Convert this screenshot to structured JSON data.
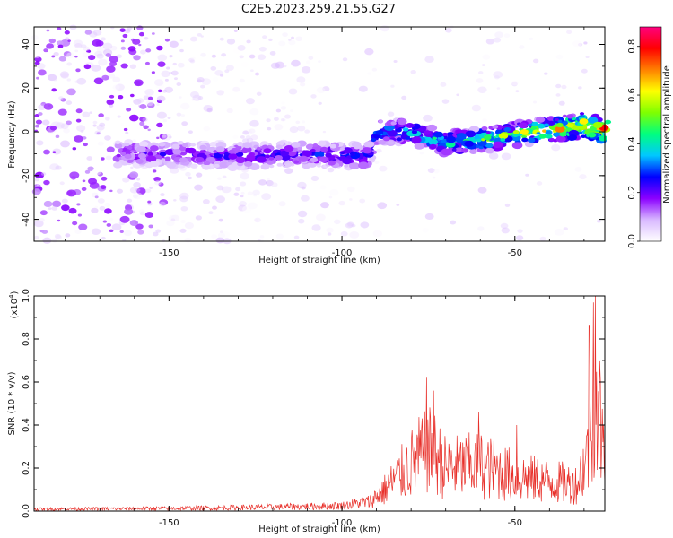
{
  "title": "C2E5.2023.259.21.55.G27",
  "chart_data": [
    {
      "type": "heatmap",
      "xlabel": "Height of straight line (km)",
      "ylabel": "Frequency (Hz)",
      "xlim": [
        -189,
        -24
      ],
      "ylim": [
        -50,
        48
      ],
      "x_ticks": [
        {
          "value": -150,
          "label": "-150"
        },
        {
          "value": -100,
          "label": "-100"
        },
        {
          "value": -50,
          "label": "-50"
        }
      ],
      "y_ticks": [
        {
          "value": -40,
          "label": "-40"
        },
        {
          "value": -20,
          "label": "-20"
        },
        {
          "value": 0,
          "label": "0"
        },
        {
          "value": 20,
          "label": "20"
        },
        {
          "value": 40,
          "label": "40"
        }
      ],
      "colorbar": {
        "label": "Normalized spectral amplitude",
        "range": [
          0.0,
          0.88
        ],
        "ticks": [
          {
            "value": 0.0,
            "label": "0.0"
          },
          {
            "value": 0.2,
            "label": "0.2"
          },
          {
            "value": 0.4,
            "label": "0.4"
          },
          {
            "value": 0.6,
            "label": "0.6"
          },
          {
            "value": 0.8,
            "label": "0.8"
          }
        ],
        "colors": [
          "#ffffff",
          "#d8b8ff",
          "#8b00ff",
          "#0000ff",
          "#00c8ff",
          "#00ff7f",
          "#7fff00",
          "#ffff00",
          "#ff8000",
          "#ff0000",
          "#ff0080"
        ]
      },
      "signal_ridge": [
        {
          "x": -164,
          "y": -10,
          "amp": 0.2
        },
        {
          "x": -150,
          "y": -10,
          "amp": 0.22
        },
        {
          "x": -140,
          "y": -11,
          "amp": 0.22
        },
        {
          "x": -125,
          "y": -11,
          "amp": 0.24
        },
        {
          "x": -110,
          "y": -10,
          "amp": 0.26
        },
        {
          "x": -100,
          "y": -11,
          "amp": 0.28
        },
        {
          "x": -92,
          "y": -11,
          "amp": 0.3
        },
        {
          "x": -90,
          "y": 0,
          "amp": 0.38
        },
        {
          "x": -80,
          "y": 0,
          "amp": 0.42
        },
        {
          "x": -70,
          "y": -5,
          "amp": 0.45
        },
        {
          "x": -60,
          "y": -4,
          "amp": 0.5
        },
        {
          "x": -50,
          "y": -1,
          "amp": 0.55
        },
        {
          "x": -40,
          "y": 1,
          "amp": 0.65
        },
        {
          "x": -30,
          "y": 3,
          "amp": 0.75
        },
        {
          "x": -25,
          "y": 1,
          "amp": 0.8
        }
      ]
    },
    {
      "type": "line",
      "xlabel": "Height of straight line (km)",
      "ylabel": "SNR (10 * v/v)",
      "scale_label": "(x10",
      "scale_exp": "4",
      "scale_close": ")",
      "xlim": [
        -189,
        -24
      ],
      "ylim": [
        0.0,
        1.0
      ],
      "x_ticks": [
        {
          "value": -150,
          "label": "-150"
        },
        {
          "value": -100,
          "label": "-100"
        },
        {
          "value": -50,
          "label": "-50"
        }
      ],
      "y_ticks": [
        {
          "value": 0.0,
          "label": "0.0"
        },
        {
          "value": 0.2,
          "label": "0.2"
        },
        {
          "value": 0.4,
          "label": "0.4"
        },
        {
          "value": 0.6,
          "label": "0.6"
        },
        {
          "value": 0.8,
          "label": "0.8"
        },
        {
          "value": 1.0,
          "label": "1.0"
        }
      ],
      "color": "#e8302a",
      "envelope": [
        {
          "x": -189,
          "y": 0.015
        },
        {
          "x": -150,
          "y": 0.02
        },
        {
          "x": -120,
          "y": 0.03
        },
        {
          "x": -100,
          "y": 0.04
        },
        {
          "x": -92,
          "y": 0.07
        },
        {
          "x": -88,
          "y": 0.15
        },
        {
          "x": -84,
          "y": 0.25
        },
        {
          "x": -78,
          "y": 0.4
        },
        {
          "x": -74,
          "y": 0.45
        },
        {
          "x": -70,
          "y": 0.32
        },
        {
          "x": -60,
          "y": 0.34
        },
        {
          "x": -50,
          "y": 0.26
        },
        {
          "x": -40,
          "y": 0.22
        },
        {
          "x": -32,
          "y": 0.2
        },
        {
          "x": -28,
          "y": 0.5
        },
        {
          "x": -26,
          "y": 0.85
        },
        {
          "x": -24,
          "y": 0.3
        }
      ],
      "peaks": [
        {
          "x": -75.5,
          "y": 0.62
        },
        {
          "x": -73.5,
          "y": 0.56
        },
        {
          "x": -60.5,
          "y": 0.46
        },
        {
          "x": -49.5,
          "y": 0.4
        },
        {
          "x": -28.5,
          "y": 0.86
        },
        {
          "x": -27.3,
          "y": 0.97
        },
        {
          "x": -26.8,
          "y": 1.0
        }
      ]
    }
  ]
}
